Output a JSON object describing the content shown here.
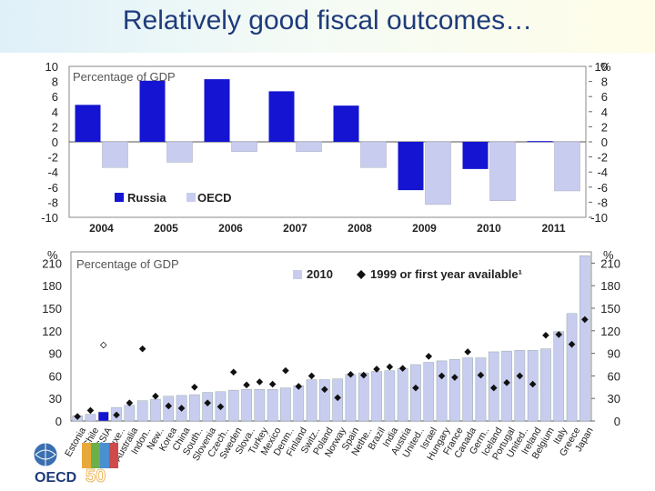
{
  "slide": {
    "title": "Relatively good fiscal outcomes…"
  },
  "logo": {
    "text": "OECD",
    "number": "50"
  },
  "colors": {
    "russia": "#1414d2",
    "oecd": "#c8cdf0",
    "bar2010": "#c8cdf0",
    "russia2010": "#1414d2",
    "marker": "#111111",
    "title": "#1f3b7a"
  },
  "chart_data": [
    {
      "type": "bar",
      "box_label": "Percentage of GDP",
      "categories": [
        "2004",
        "2005",
        "2006",
        "2007",
        "2008",
        "2009",
        "2010",
        "2011"
      ],
      "series": [
        {
          "name": "Russia",
          "values": [
            4.9,
            8.1,
            8.3,
            6.7,
            4.8,
            -6.4,
            -3.6,
            0.1
          ]
        },
        {
          "name": "OECD",
          "values": [
            -3.4,
            -2.7,
            -1.3,
            -1.3,
            -3.4,
            -8.3,
            -7.8,
            -6.5
          ]
        }
      ],
      "ylim": [
        -10,
        10
      ],
      "yticks": [
        "10",
        "8",
        "6",
        "4",
        "2",
        "0",
        "-2",
        "-4",
        "-6",
        "-8",
        "-10"
      ],
      "right_unit": "%",
      "legend": "bottom-left"
    },
    {
      "type": "bar",
      "box_label": "Percentage of GDP",
      "unit_left": "%",
      "unit_right": "%",
      "categories": [
        "Estonia",
        "Chile",
        "RUSSIA",
        "Luxe..",
        "Australia",
        "Indon..",
        "New..",
        "Korea",
        "China",
        "South..",
        "Slovenia",
        "Czech..",
        "Sweden",
        "Slova..",
        "Turkey",
        "Mexico",
        "Denm..",
        "Finland",
        "Switz..",
        "Poland",
        "Norway",
        "Spain",
        "Nethe..",
        "Brazil",
        "India",
        "Austria",
        "United..",
        "Israel",
        "Hungary",
        "France",
        "Canada",
        "Germ..",
        "Iceland",
        "Portugal",
        "United..",
        "Ireland",
        "Belgium",
        "Italy",
        "Greece",
        "Japan"
      ],
      "series": [
        {
          "name": "2010",
          "values": [
            7,
            9,
            12,
            18,
            21,
            27,
            29,
            33,
            34,
            35,
            38,
            39,
            41,
            42,
            42,
            42,
            44,
            47,
            55,
            55,
            56,
            62,
            64,
            66,
            67,
            70,
            75,
            78,
            80,
            82,
            84,
            84,
            92,
            93,
            94,
            94,
            96,
            119,
            143,
            220
          ]
        },
        {
          "name": "1999 or first year available¹",
          "values": [
            6,
            14,
            101,
            8,
            24,
            96,
            33,
            20,
            17,
            45,
            24,
            19,
            65,
            48,
            52,
            49,
            67,
            46,
            60,
            42,
            31,
            62,
            61,
            69,
            72,
            70,
            44,
            86,
            60,
            58,
            92,
            61,
            44,
            51,
            60,
            49,
            114,
            115,
            102,
            135
          ]
        }
      ],
      "ylim": [
        0,
        225
      ],
      "yticks": [
        "210",
        "180",
        "150",
        "120",
        "90",
        "60",
        "30",
        "0"
      ],
      "legend": "top-right"
    }
  ]
}
